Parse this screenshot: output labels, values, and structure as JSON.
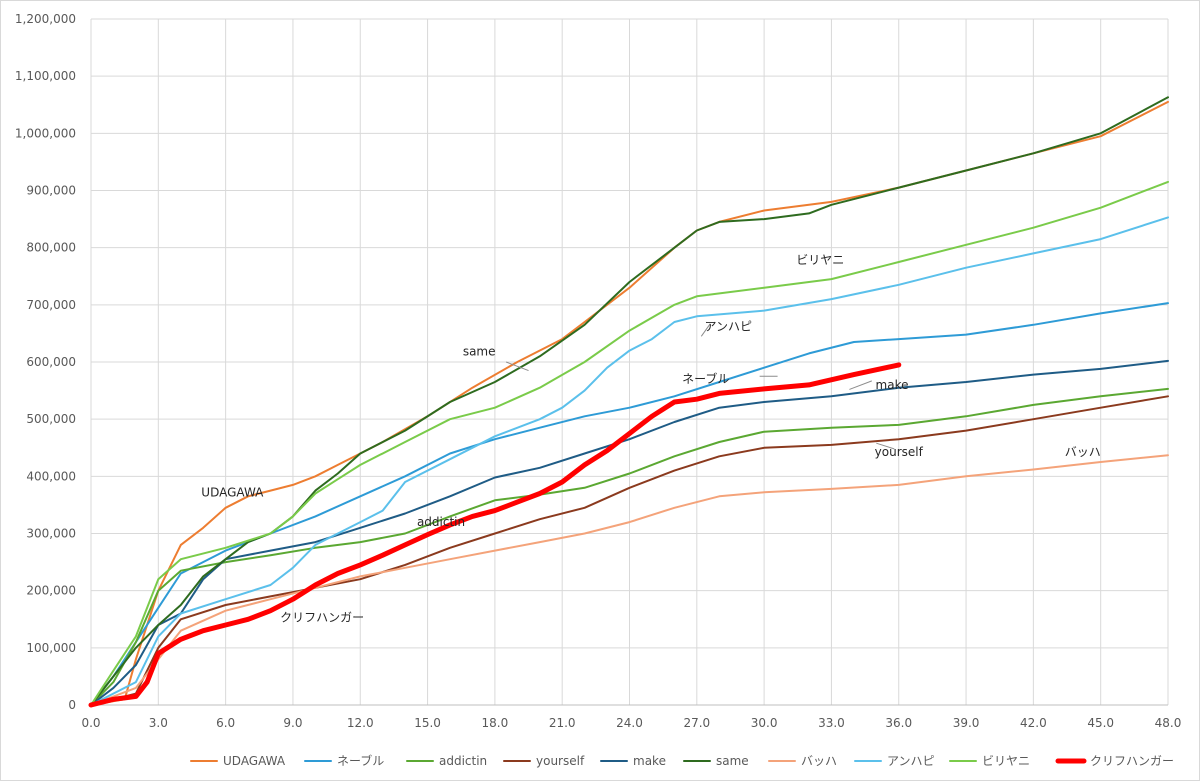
{
  "chart_data": {
    "type": "line",
    "title": "",
    "xlabel": "",
    "ylabel": "",
    "xlim": [
      0,
      48
    ],
    "ylim": [
      0,
      1200000
    ],
    "x_ticks": [
      "0.0",
      "3.0",
      "6.0",
      "9.0",
      "12.0",
      "15.0",
      "18.0",
      "21.0",
      "24.0",
      "27.0",
      "30.0",
      "33.0",
      "36.0",
      "39.0",
      "42.0",
      "45.0",
      "48.0"
    ],
    "y_ticks": [
      "0",
      "100,000",
      "200,000",
      "300,000",
      "400,000",
      "500,000",
      "600,000",
      "700,000",
      "800,000",
      "900,000",
      "1,000,000",
      "1,100,000",
      "1,200,000"
    ],
    "grid": "vertical and horizontal",
    "legend_position": "bottom",
    "series": [
      {
        "name": "UDAGAWA",
        "color": "#ED7D31",
        "width": 2,
        "points": [
          [
            0,
            0
          ],
          [
            1.5,
            10000
          ],
          [
            2,
            80000
          ],
          [
            3,
            200000
          ],
          [
            4,
            280000
          ],
          [
            5,
            310000
          ],
          [
            6,
            345000
          ],
          [
            7,
            365000
          ],
          [
            8,
            375000
          ],
          [
            9,
            385000
          ],
          [
            10,
            400000
          ],
          [
            11,
            420000
          ],
          [
            12,
            440000
          ],
          [
            13,
            460000
          ],
          [
            15,
            505000
          ],
          [
            17,
            555000
          ],
          [
            19,
            600000
          ],
          [
            21,
            640000
          ],
          [
            22,
            670000
          ],
          [
            24,
            730000
          ],
          [
            26,
            800000
          ],
          [
            27,
            830000
          ],
          [
            28,
            845000
          ],
          [
            30,
            865000
          ],
          [
            33,
            880000
          ],
          [
            36,
            905000
          ],
          [
            39,
            935000
          ],
          [
            42,
            965000
          ],
          [
            45,
            995000
          ],
          [
            48,
            1055000
          ]
        ]
      },
      {
        "name": "ネーブル",
        "color": "#2E9BD6",
        "width": 2,
        "points": [
          [
            0,
            0
          ],
          [
            1,
            50000
          ],
          [
            2,
            110000
          ],
          [
            3,
            170000
          ],
          [
            4,
            230000
          ],
          [
            6,
            270000
          ],
          [
            8,
            300000
          ],
          [
            10,
            330000
          ],
          [
            12,
            365000
          ],
          [
            14,
            400000
          ],
          [
            16,
            440000
          ],
          [
            18,
            465000
          ],
          [
            20,
            485000
          ],
          [
            22,
            505000
          ],
          [
            24,
            520000
          ],
          [
            26,
            540000
          ],
          [
            28,
            565000
          ],
          [
            30,
            590000
          ],
          [
            32,
            615000
          ],
          [
            34,
            635000
          ],
          [
            36,
            640000
          ],
          [
            39,
            648000
          ],
          [
            42,
            665000
          ],
          [
            45,
            685000
          ],
          [
            48,
            703000
          ]
        ]
      },
      {
        "name": "addictin",
        "color": "#5BA832",
        "width": 2,
        "points": [
          [
            0,
            0
          ],
          [
            1,
            40000
          ],
          [
            2,
            110000
          ],
          [
            3,
            200000
          ],
          [
            4,
            235000
          ],
          [
            6,
            250000
          ],
          [
            8,
            262000
          ],
          [
            10,
            275000
          ],
          [
            12,
            285000
          ],
          [
            14,
            300000
          ],
          [
            16,
            330000
          ],
          [
            18,
            358000
          ],
          [
            20,
            368000
          ],
          [
            22,
            380000
          ],
          [
            24,
            405000
          ],
          [
            26,
            435000
          ],
          [
            28,
            460000
          ],
          [
            30,
            478000
          ],
          [
            33,
            485000
          ],
          [
            36,
            490000
          ],
          [
            39,
            505000
          ],
          [
            42,
            525000
          ],
          [
            45,
            540000
          ],
          [
            48,
            553000
          ]
        ]
      },
      {
        "name": "yourself",
        "color": "#8B3A1E",
        "width": 2,
        "points": [
          [
            0,
            0
          ],
          [
            2,
            20000
          ],
          [
            3,
            100000
          ],
          [
            4,
            150000
          ],
          [
            6,
            175000
          ],
          [
            8,
            190000
          ],
          [
            10,
            205000
          ],
          [
            12,
            220000
          ],
          [
            14,
            245000
          ],
          [
            16,
            275000
          ],
          [
            18,
            300000
          ],
          [
            20,
            325000
          ],
          [
            22,
            345000
          ],
          [
            24,
            380000
          ],
          [
            26,
            410000
          ],
          [
            28,
            435000
          ],
          [
            30,
            450000
          ],
          [
            33,
            455000
          ],
          [
            36,
            465000
          ],
          [
            39,
            480000
          ],
          [
            42,
            500000
          ],
          [
            45,
            520000
          ],
          [
            48,
            540000
          ]
        ]
      },
      {
        "name": "make",
        "color": "#1F5C86",
        "width": 2,
        "points": [
          [
            0,
            0
          ],
          [
            1,
            30000
          ],
          [
            2,
            70000
          ],
          [
            3,
            140000
          ],
          [
            4,
            160000
          ],
          [
            5,
            220000
          ],
          [
            6,
            255000
          ],
          [
            8,
            270000
          ],
          [
            10,
            285000
          ],
          [
            12,
            310000
          ],
          [
            14,
            335000
          ],
          [
            16,
            365000
          ],
          [
            18,
            398000
          ],
          [
            20,
            415000
          ],
          [
            22,
            440000
          ],
          [
            24,
            465000
          ],
          [
            26,
            495000
          ],
          [
            28,
            520000
          ],
          [
            30,
            530000
          ],
          [
            33,
            540000
          ],
          [
            36,
            555000
          ],
          [
            39,
            565000
          ],
          [
            42,
            578000
          ],
          [
            45,
            588000
          ],
          [
            48,
            602000
          ]
        ]
      },
      {
        "name": "same",
        "color": "#2E6B1F",
        "width": 2,
        "points": [
          [
            0,
            0
          ],
          [
            1,
            50000
          ],
          [
            2,
            100000
          ],
          [
            3,
            140000
          ],
          [
            4,
            175000
          ],
          [
            5,
            225000
          ],
          [
            6,
            255000
          ],
          [
            7,
            285000
          ],
          [
            8,
            300000
          ],
          [
            9,
            330000
          ],
          [
            10,
            375000
          ],
          [
            11,
            405000
          ],
          [
            12,
            440000
          ],
          [
            14,
            480000
          ],
          [
            16,
            530000
          ],
          [
            18,
            565000
          ],
          [
            20,
            610000
          ],
          [
            22,
            665000
          ],
          [
            24,
            740000
          ],
          [
            26,
            800000
          ],
          [
            27,
            830000
          ],
          [
            28,
            845000
          ],
          [
            30,
            850000
          ],
          [
            32,
            860000
          ],
          [
            33,
            875000
          ],
          [
            36,
            905000
          ],
          [
            39,
            935000
          ],
          [
            42,
            965000
          ],
          [
            45,
            1000000
          ],
          [
            48,
            1063000
          ]
        ]
      },
      {
        "name": "バッハ",
        "color": "#F4A37A",
        "width": 2,
        "points": [
          [
            0,
            0
          ],
          [
            2,
            30000
          ],
          [
            3,
            80000
          ],
          [
            4,
            130000
          ],
          [
            6,
            165000
          ],
          [
            8,
            185000
          ],
          [
            10,
            205000
          ],
          [
            12,
            225000
          ],
          [
            14,
            240000
          ],
          [
            16,
            255000
          ],
          [
            18,
            270000
          ],
          [
            20,
            285000
          ],
          [
            22,
            300000
          ],
          [
            24,
            320000
          ],
          [
            26,
            345000
          ],
          [
            28,
            365000
          ],
          [
            30,
            372000
          ],
          [
            33,
            378000
          ],
          [
            36,
            385000
          ],
          [
            39,
            400000
          ],
          [
            42,
            412000
          ],
          [
            45,
            425000
          ],
          [
            48,
            437000
          ]
        ]
      },
      {
        "name": "アンハピ",
        "color": "#5BC0EB",
        "width": 2,
        "points": [
          [
            0,
            0
          ],
          [
            2,
            40000
          ],
          [
            3,
            120000
          ],
          [
            4,
            160000
          ],
          [
            6,
            185000
          ],
          [
            8,
            210000
          ],
          [
            9,
            240000
          ],
          [
            10,
            280000
          ],
          [
            11,
            300000
          ],
          [
            12,
            320000
          ],
          [
            13,
            340000
          ],
          [
            14,
            390000
          ],
          [
            16,
            430000
          ],
          [
            18,
            470000
          ],
          [
            20,
            500000
          ],
          [
            21,
            520000
          ],
          [
            22,
            550000
          ],
          [
            23,
            590000
          ],
          [
            24,
            620000
          ],
          [
            25,
            640000
          ],
          [
            26,
            670000
          ],
          [
            27,
            680000
          ],
          [
            30,
            690000
          ],
          [
            33,
            710000
          ],
          [
            36,
            735000
          ],
          [
            39,
            765000
          ],
          [
            42,
            790000
          ],
          [
            45,
            815000
          ],
          [
            48,
            853000
          ]
        ]
      },
      {
        "name": "ビリヤニ",
        "color": "#7ACB4A",
        "width": 2,
        "points": [
          [
            0,
            0
          ],
          [
            1,
            60000
          ],
          [
            2,
            120000
          ],
          [
            3,
            220000
          ],
          [
            4,
            255000
          ],
          [
            6,
            275000
          ],
          [
            8,
            300000
          ],
          [
            9,
            330000
          ],
          [
            10,
            370000
          ],
          [
            11,
            395000
          ],
          [
            12,
            420000
          ],
          [
            14,
            460000
          ],
          [
            16,
            500000
          ],
          [
            18,
            520000
          ],
          [
            20,
            555000
          ],
          [
            22,
            600000
          ],
          [
            24,
            655000
          ],
          [
            26,
            700000
          ],
          [
            27,
            715000
          ],
          [
            30,
            730000
          ],
          [
            33,
            745000
          ],
          [
            36,
            775000
          ],
          [
            39,
            805000
          ],
          [
            42,
            835000
          ],
          [
            45,
            870000
          ],
          [
            48,
            915000
          ]
        ]
      },
      {
        "name": "クリフハンガー",
        "color": "#FF0000",
        "width": 5,
        "points": [
          [
            0,
            0
          ],
          [
            1,
            10000
          ],
          [
            2,
            15000
          ],
          [
            2.5,
            40000
          ],
          [
            3,
            90000
          ],
          [
            4,
            115000
          ],
          [
            5,
            130000
          ],
          [
            6,
            140000
          ],
          [
            7,
            150000
          ],
          [
            8,
            165000
          ],
          [
            9,
            185000
          ],
          [
            10,
            210000
          ],
          [
            11,
            230000
          ],
          [
            12,
            245000
          ],
          [
            13,
            262000
          ],
          [
            14,
            280000
          ],
          [
            15,
            298000
          ],
          [
            16,
            315000
          ],
          [
            17,
            330000
          ],
          [
            18,
            340000
          ],
          [
            19,
            355000
          ],
          [
            20,
            370000
          ],
          [
            21,
            390000
          ],
          [
            22,
            420000
          ],
          [
            23,
            445000
          ],
          [
            24,
            475000
          ],
          [
            25,
            505000
          ],
          [
            26,
            530000
          ],
          [
            27,
            535000
          ],
          [
            28,
            545000
          ],
          [
            30,
            553000
          ],
          [
            32,
            560000
          ],
          [
            34,
            578000
          ],
          [
            36,
            595000
          ]
        ]
      }
    ],
    "annotations": [
      {
        "text": "UDAGAWA",
        "x": 6.3,
        "y": 372000
      },
      {
        "text": "same",
        "x": 17.3,
        "y": 618000
      },
      {
        "text": "アンハピ",
        "x": 28.4,
        "y": 662000
      },
      {
        "text": "ビリヤニ",
        "x": 32.5,
        "y": 778000
      },
      {
        "text": "ネーブル",
        "x": 27.4,
        "y": 570000
      },
      {
        "text": "make",
        "x": 35.7,
        "y": 560000
      },
      {
        "text": "yourself",
        "x": 36,
        "y": 443000
      },
      {
        "text": "バッハ",
        "x": 44.2,
        "y": 443000
      },
      {
        "text": "addictin",
        "x": 15.6,
        "y": 320000
      },
      {
        "text": "クリフハンガー",
        "x": 10.3,
        "y": 153000
      }
    ],
    "leaders": [
      {
        "from": [
          18.5,
          600000
        ],
        "to": [
          19.5,
          585000
        ]
      },
      {
        "from": [
          27.6,
          667000
        ],
        "to": [
          27.2,
          645000
        ]
      },
      {
        "from": [
          29.8,
          575000
        ],
        "to": [
          30.6,
          575000
        ]
      },
      {
        "from": [
          34.8,
          567000
        ],
        "to": [
          33.8,
          552000
        ]
      },
      {
        "from": [
          35.8,
          448000
        ],
        "to": [
          35.0,
          458000
        ]
      }
    ]
  }
}
